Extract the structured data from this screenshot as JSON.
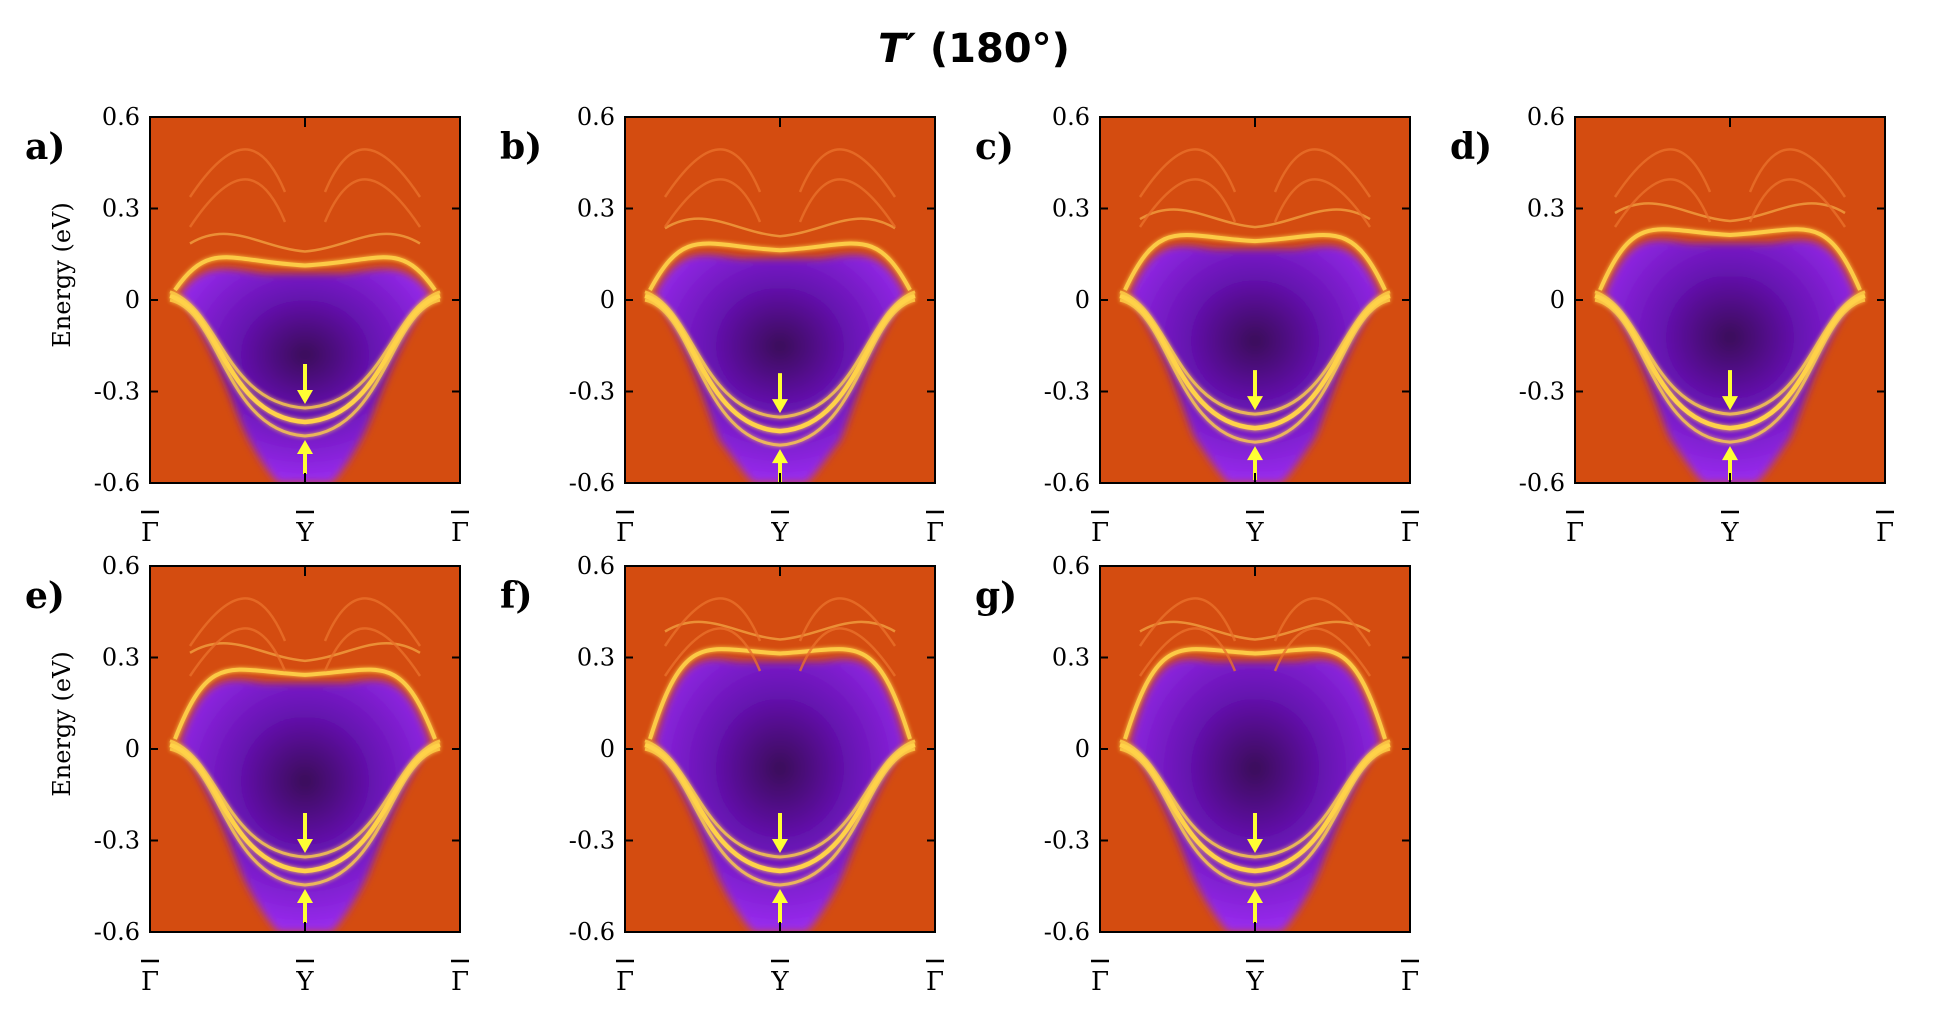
{
  "figure": {
    "title_main": "T′",
    "title_rest": " (180°)"
  },
  "chart_data": {
    "type": "heatmap",
    "ylabel": "Energy (eV)",
    "ylim": [
      -0.6,
      0.6
    ],
    "yticks": [
      "0.6",
      "0.3",
      "0",
      "-0.3",
      "-0.6"
    ],
    "kpath": [
      "Γ",
      "Y",
      "Γ"
    ],
    "colors": {
      "background": "#d44c10",
      "bulk_gap": "#8a22e6",
      "gap_core": "#4a0a6e",
      "surface_state": "#ffd24a",
      "arrow": "#ffff33"
    },
    "panels": [
      {
        "label": "a)",
        "surface_dirac_point_ev": -0.4,
        "gap_top_ev": 0.1,
        "ylabel_shown": true
      },
      {
        "label": "b)",
        "surface_dirac_point_ev": -0.43,
        "gap_top_ev": 0.15,
        "ylabel_shown": false
      },
      {
        "label": "c)",
        "surface_dirac_point_ev": -0.42,
        "gap_top_ev": 0.18,
        "ylabel_shown": false
      },
      {
        "label": "d)",
        "surface_dirac_point_ev": -0.42,
        "gap_top_ev": 0.2,
        "ylabel_shown": false
      },
      {
        "label": "e)",
        "surface_dirac_point_ev": -0.4,
        "gap_top_ev": 0.23,
        "ylabel_shown": true
      },
      {
        "label": "f)",
        "surface_dirac_point_ev": -0.4,
        "gap_top_ev": 0.3,
        "ylabel_shown": false
      },
      {
        "label": "g)",
        "surface_dirac_point_ev": -0.4,
        "gap_top_ev": 0.3,
        "ylabel_shown": false
      }
    ]
  }
}
